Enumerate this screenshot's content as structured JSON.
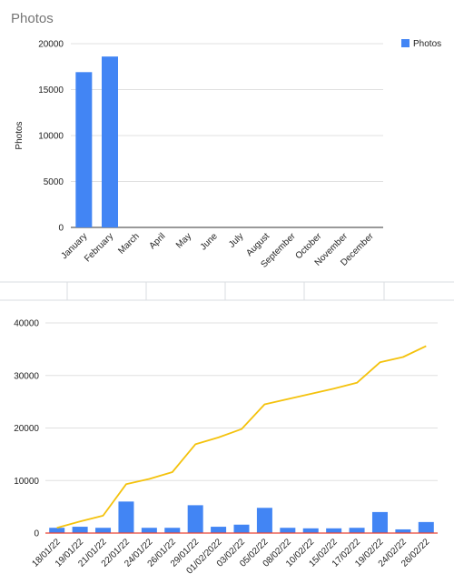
{
  "chart_data": [
    {
      "type": "bar",
      "title": "Photos",
      "ylabel": "Photos",
      "xlabel": "",
      "ylim": [
        0,
        20000
      ],
      "yticks": [
        0,
        5000,
        10000,
        15000,
        20000
      ],
      "categories": [
        "January",
        "February",
        "March",
        "April",
        "May",
        "June",
        "July",
        "August",
        "September",
        "October",
        "November",
        "December"
      ],
      "series": [
        {
          "name": "Photos",
          "color": "#4285f4",
          "values": [
            16900,
            18600,
            0,
            0,
            0,
            0,
            0,
            0,
            0,
            0,
            0,
            0
          ]
        }
      ],
      "legend": "top-right",
      "grid": true
    },
    {
      "type": "bar+line",
      "ylim": [
        0,
        40000
      ],
      "yticks": [
        0,
        10000,
        20000,
        30000,
        40000
      ],
      "categories": [
        "18/01/22",
        "19/01/22",
        "21/01/22",
        "22/01/22",
        "24/01/22",
        "26/01/22",
        "29/01/22",
        "01/02/2022",
        "03/02/22",
        "05/02/22",
        "08/02/22",
        "10/02/22",
        "15/02/22",
        "17/02/22",
        "19/02/22",
        "24/02/22",
        "26/02/22"
      ],
      "series": [
        {
          "type": "bar",
          "color": "#4285f4",
          "values": [
            1000,
            1200,
            1000,
            6000,
            1000,
            1000,
            5300,
            1200,
            1600,
            4800,
            1000,
            900,
            900,
            1000,
            4000,
            700,
            2100
          ]
        },
        {
          "type": "line",
          "color": "#f4c20d",
          "values": [
            1000,
            2200,
            3300,
            9300,
            10300,
            11600,
            16900,
            18200,
            19800,
            24500,
            25500,
            26500,
            27500,
            28600,
            32500,
            33500,
            35600
          ]
        }
      ],
      "grid": true
    }
  ]
}
